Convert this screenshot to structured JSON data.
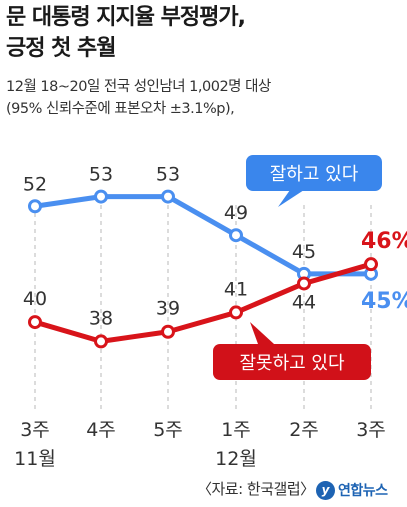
{
  "title_line1": "문 대통령 지지율 부정평가,",
  "title_line2": "긍정 첫 추월",
  "subtitle_line1": "12월 18~20일 전국 성인남녀 1,002명 대상",
  "subtitle_line2": "(95% 신뢰수준에 표본오차 ±3.1%p),",
  "source": "〈자료: 한국갤럽〉",
  "logo_text": "연합뉴스",
  "colors": {
    "positive": "#4a8ff0",
    "negative": "#d8141a",
    "positive_box": "#3a86ec",
    "negative_box": "#d11119"
  },
  "chart_data": {
    "type": "line",
    "categories": [
      "3주",
      "4주",
      "5주",
      "1주",
      "2주",
      "3주"
    ],
    "month_labels": [
      {
        "category_index": 0,
        "label": "11월"
      },
      {
        "category_index": 3,
        "label": "12월"
      }
    ],
    "series": [
      {
        "name": "잘하고 있다",
        "values": [
          52,
          53,
          53,
          49,
          45,
          45
        ],
        "color": "#4a8ff0"
      },
      {
        "name": "잘못하고 있다",
        "values": [
          40,
          38,
          39,
          41,
          44,
          46
        ],
        "color": "#d8141a"
      }
    ],
    "ylim": [
      34,
      57
    ],
    "grid": "dashed vertical"
  }
}
